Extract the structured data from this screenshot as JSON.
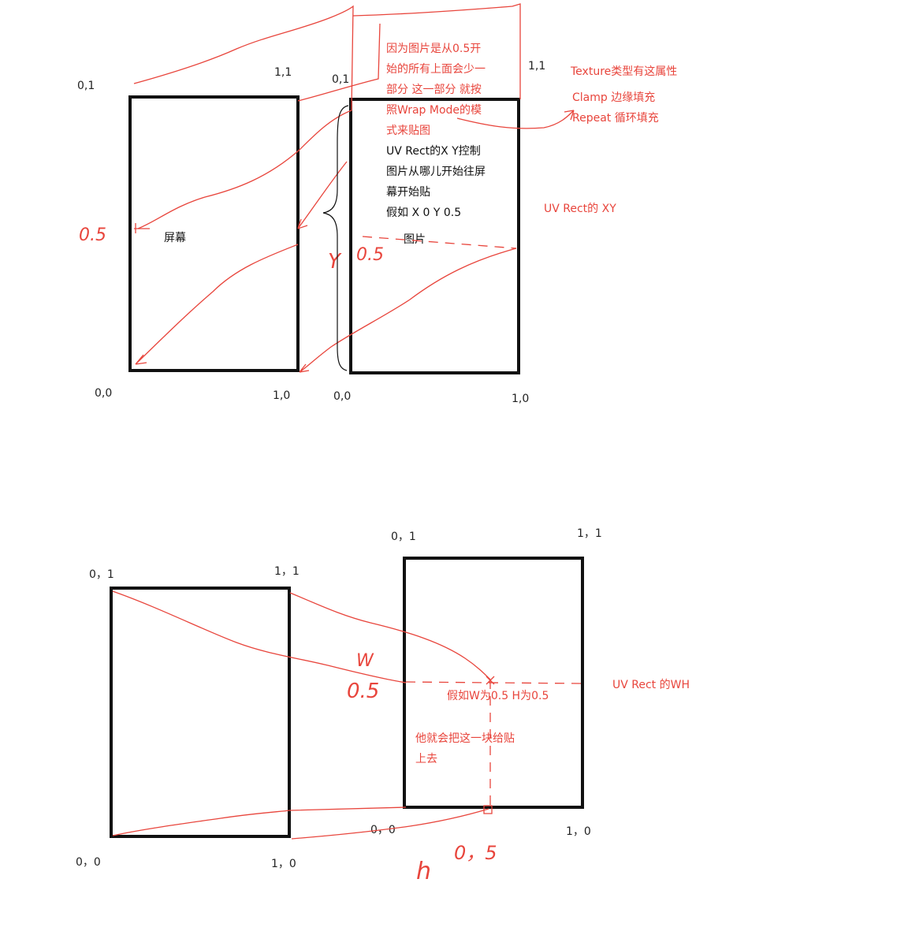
{
  "top": {
    "screen": {
      "label": "屏幕",
      "corner_tl": "0,1",
      "corner_tr": "1,1",
      "corner_bl": "0,0",
      "corner_br": "1,0"
    },
    "image": {
      "label": "图片",
      "corner_tl": "0,1",
      "corner_tr": "1,1",
      "corner_bl": "0,0",
      "corner_br": "1,0"
    },
    "handwritten_half_left": "0.5",
    "handwritten_half_right": "0.5",
    "handwritten_y": "Y",
    "red_note_lines": [
      "因为图片是从0.5开",
      "始的所有上面会少一",
      "部分 这一部分 就按",
      "照Wrap Mode的模",
      "式来贴图"
    ],
    "black_note_lines": [
      "UV Rect的X Y控制",
      "图片从哪儿开始往屏",
      "幕开始贴",
      "假如 X 0 Y 0.5"
    ],
    "texture_note": {
      "title": "Texture类型有这属性",
      "clamp": "Clamp 边缘填充",
      "repeat": "Repeat 循环填充"
    },
    "uv_rect_xy_label": "UV Rect的 XY"
  },
  "bottom": {
    "screen": {
      "corner_tl": "0，1",
      "corner_tr": "1，1",
      "corner_bl": "0，0",
      "corner_br": "1，0"
    },
    "image": {
      "corner_tl": "0，1",
      "corner_tr": "1，1",
      "corner_bl": "0，0",
      "corner_br": "1，0"
    },
    "handwritten_w": "W",
    "handwritten_w_value": "0.5",
    "handwritten_h": "h",
    "handwritten_h_value": "0，5",
    "wh_example": "假如W为0.5 H为0.5",
    "paste_note_lines": [
      "他就会把这一块给贴",
      "上去"
    ],
    "uv_rect_wh_label": "UV Rect 的WH"
  },
  "colors": {
    "annotation": "#e8453c",
    "box": "#111111"
  }
}
